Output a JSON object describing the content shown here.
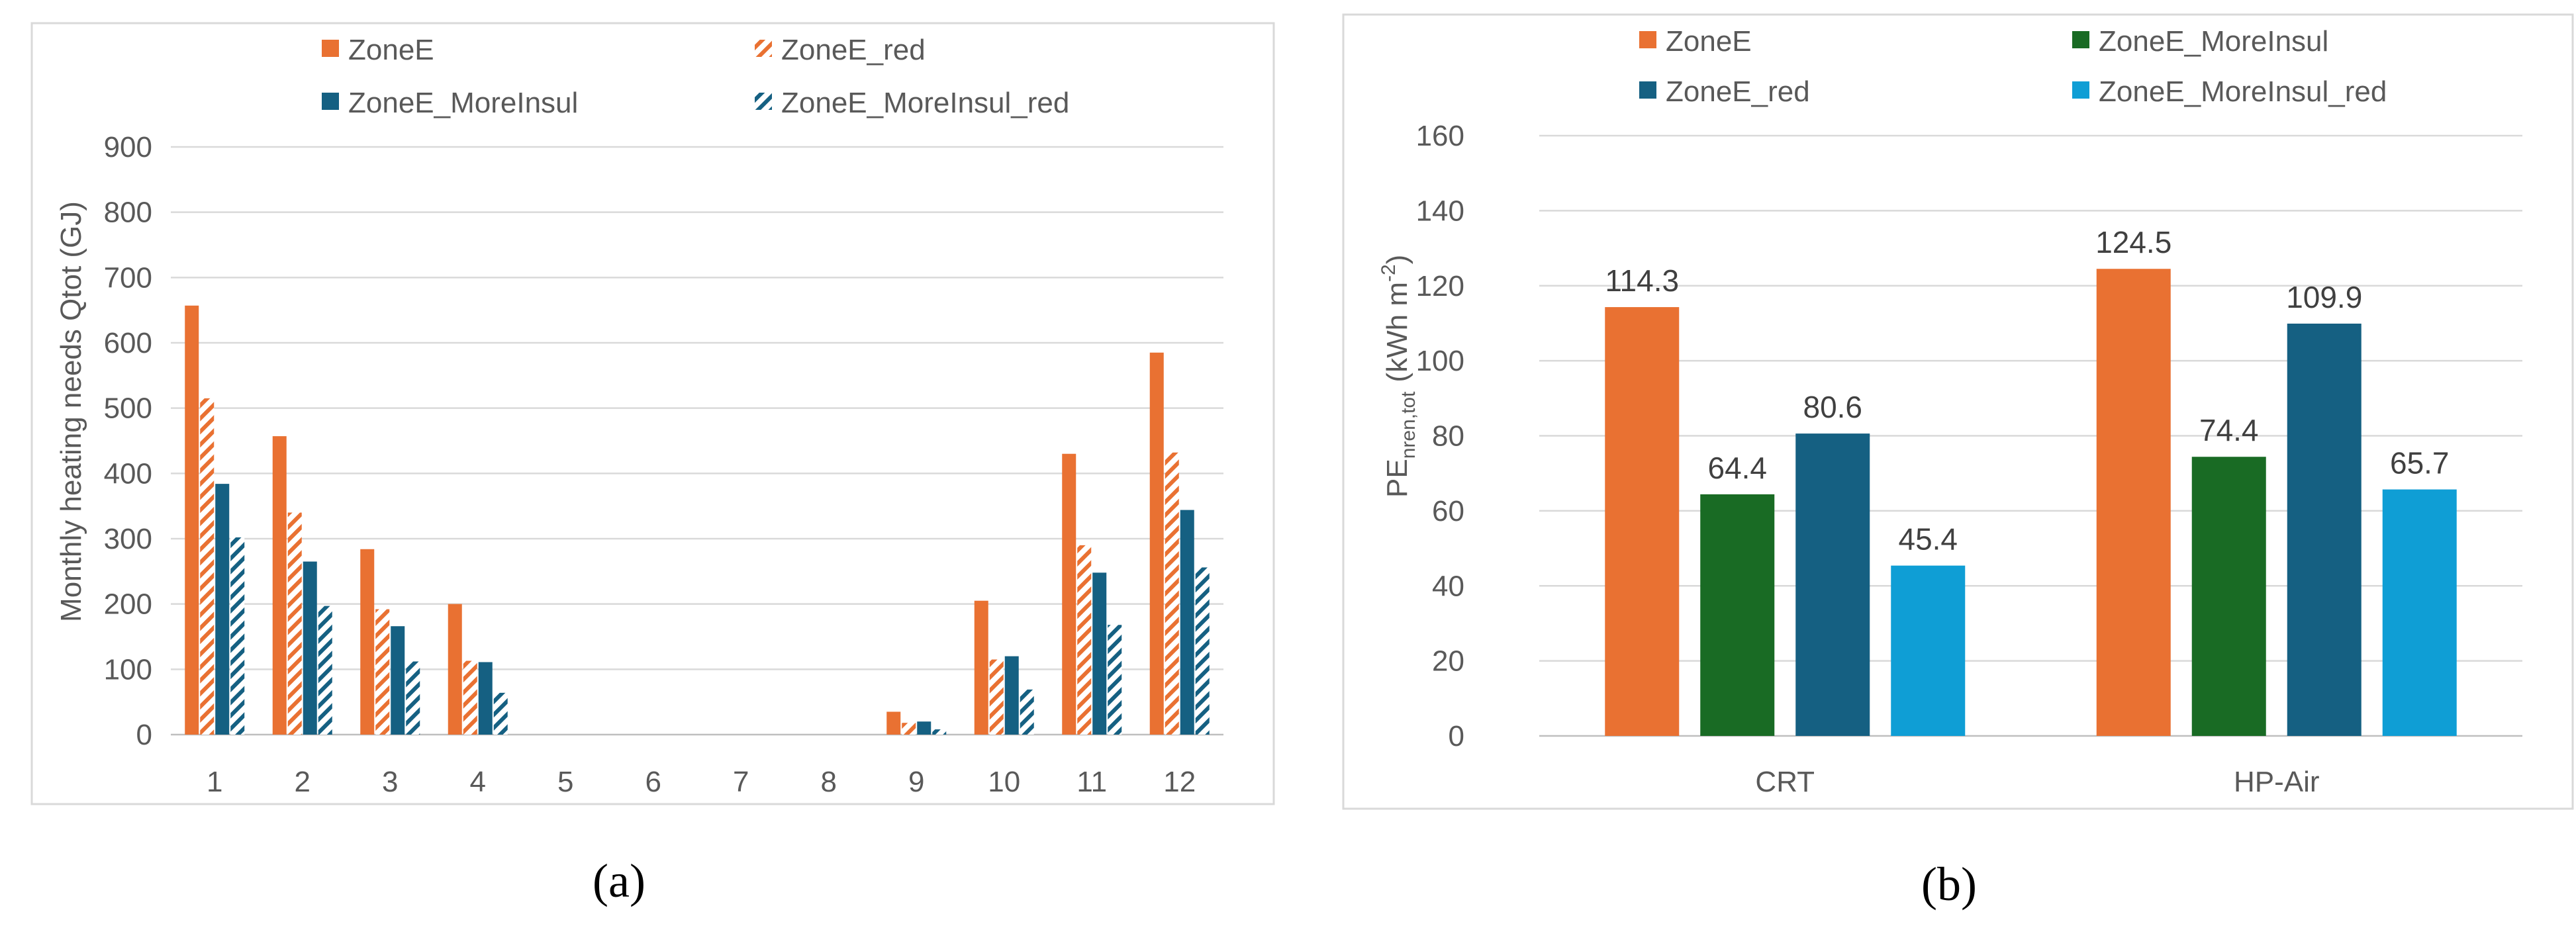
{
  "chart_data": [
    {
      "id": "a",
      "type": "bar",
      "panel_label": "(a)",
      "ylabel": "Monthly heating needs Qtot (GJ)",
      "xlabel": "",
      "ylim": [
        0,
        900
      ],
      "yticks": [
        0,
        100,
        200,
        300,
        400,
        500,
        600,
        700,
        800,
        900
      ],
      "grid": true,
      "legend_position": "top",
      "categories": [
        "1",
        "2",
        "3",
        "4",
        "5",
        "6",
        "7",
        "8",
        "9",
        "10",
        "11",
        "12"
      ],
      "series": [
        {
          "name": "ZoneE",
          "color": "#E97132",
          "pattern": "solid",
          "values": [
            657,
            457,
            284,
            200,
            0,
            0,
            0,
            0,
            35,
            205,
            430,
            585
          ]
        },
        {
          "name": "ZoneE_red",
          "color": "#E97132",
          "pattern": "hatch",
          "values": [
            515,
            340,
            192,
            113,
            0,
            0,
            0,
            0,
            18,
            115,
            290,
            432
          ]
        },
        {
          "name": "ZoneE_MoreInsul",
          "color": "#156082",
          "pattern": "solid",
          "values": [
            384,
            265,
            166,
            111,
            0,
            0,
            0,
            0,
            20,
            120,
            248,
            344
          ]
        },
        {
          "name": "ZoneE_MoreInsul_red",
          "color": "#156082",
          "pattern": "hatch",
          "values": [
            302,
            197,
            112,
            64,
            0,
            0,
            0,
            0,
            8,
            69,
            168,
            256
          ]
        }
      ],
      "legend": [
        "ZoneE",
        "ZoneE_red",
        "ZoneE_MoreInsul",
        "ZoneE_MoreInsul_red"
      ]
    },
    {
      "id": "b",
      "type": "bar",
      "panel_label": "(b)",
      "ylabel_main": "PE",
      "ylabel_sub": "nren,tot",
      "ylabel_unit_pre": "(kWh m",
      "ylabel_unit_sup": "-2",
      "ylabel_unit_post": ")",
      "xlabel": "",
      "ylim": [
        0,
        160
      ],
      "yticks": [
        0,
        20,
        40,
        60,
        80,
        100,
        120,
        140,
        160
      ],
      "grid": true,
      "legend_position": "top",
      "categories": [
        "CRT",
        "HP-Air"
      ],
      "series": [
        {
          "name": "ZoneE",
          "color": "#E97132",
          "values": [
            114.3,
            124.5
          ],
          "labels": [
            "114.3",
            "124.5"
          ]
        },
        {
          "name": "ZoneE_MoreInsul",
          "color": "#196B24",
          "values": [
            64.4,
            74.4
          ],
          "labels": [
            "64.4",
            "74.4"
          ]
        },
        {
          "name": "ZoneE_red",
          "color": "#156082",
          "values": [
            80.6,
            109.9
          ],
          "labels": [
            "80.6",
            "109.9"
          ]
        },
        {
          "name": "ZoneE_MoreInsul_red",
          "color": "#0F9ED5",
          "values": [
            45.4,
            65.7
          ],
          "labels": [
            "45.4",
            "65.7"
          ]
        }
      ],
      "legend": [
        "ZoneE",
        "ZoneE_MoreInsul",
        "ZoneE_red",
        "ZoneE_MoreInsul_red"
      ]
    }
  ]
}
